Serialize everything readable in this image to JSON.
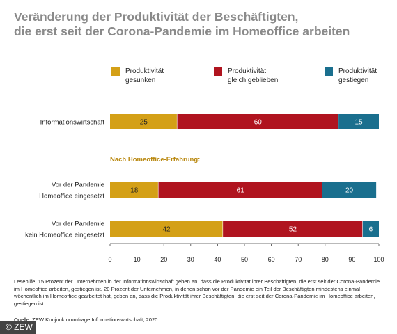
{
  "title_line1": "Veränderung der Produktivität der Beschäftigten,",
  "title_line2": "die erst seit der Corona-Pandemie im Homeoffice arbeiten",
  "legend": [
    {
      "label": "Produktivität\ngesunken",
      "color": "#d4a017"
    },
    {
      "label": "Produktivität\ngleich geblieben",
      "color": "#b0141f"
    },
    {
      "label": "Produktivität\ngestiegen",
      "color": "#1a6f8e"
    }
  ],
  "chart_data": {
    "type": "bar",
    "orientation": "horizontal",
    "stacked": true,
    "categories": [
      [
        "Informationswirtschaft"
      ],
      [
        "Vor der Pandemie",
        "Homeoffice eingesetzt"
      ],
      [
        "Vor der Pandemie",
        "kein Homeoffice eingesetzt"
      ]
    ],
    "series": [
      {
        "name": "Produktivität gesunken",
        "values": [
          25,
          18,
          42
        ]
      },
      {
        "name": "Produktivität gleich geblieben",
        "values": [
          60,
          61,
          52
        ]
      },
      {
        "name": "Produktivität gestiegen",
        "values": [
          15,
          20,
          6
        ]
      }
    ],
    "subheading": "Nach Homeoffice-Erfahrung:",
    "xlim": [
      0,
      100
    ],
    "xticks": [
      0,
      10,
      20,
      30,
      40,
      50,
      60,
      70,
      80,
      90,
      100
    ],
    "grid": false,
    "legend_position": "top"
  },
  "note": "Lesehilfe: 15 Prozent der Unternehmen in der Informationswirtschaft geben an, dass die Produktivität ihrer Beschäftigten, die erst seit der Corona-Pandemie im Homeoffice arbeiten, gestiegen ist. 20 Prozent der Unternehmen, in denen schon vor der Pandemie ein Teil der Beschäftigten mindestens einmal wöchentlich im Homeoffice gearbeitet hat, geben an, dass die Produktivität ihrer Beschäftigten, die erst seit der Corona-Pandemie im Homeoffice arbeiten, gestiegen ist.",
  "source": "Quelle: ZEW Konjunkturumfrage Informationswirtschaft, 2020",
  "copyright": "© ZEW"
}
